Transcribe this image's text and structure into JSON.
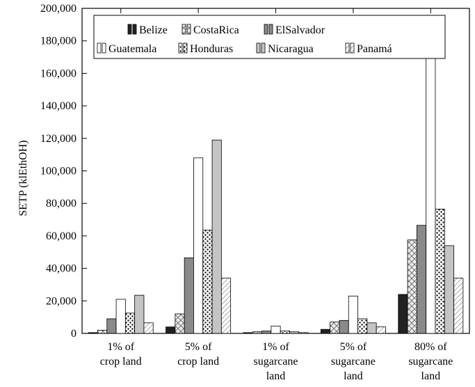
{
  "chart_data": {
    "type": "bar",
    "ylabel": "SETP (klEthOH)",
    "xlabel": "",
    "title": "",
    "ylim": [
      0,
      200000
    ],
    "yticks": [
      0,
      20000,
      40000,
      60000,
      80000,
      100000,
      120000,
      140000,
      160000,
      180000,
      200000
    ],
    "ytick_labels": [
      "0",
      "20,000",
      "40,000",
      "60,000",
      "80,000",
      "100,000",
      "120,000",
      "140,000",
      "160,000",
      "180,000",
      "200,000"
    ],
    "categories": [
      [
        "1% of",
        "crop land"
      ],
      [
        "5% of",
        "crop land"
      ],
      [
        "1% of",
        "sugarcane",
        "land"
      ],
      [
        "5% of",
        "sugarcane",
        "land"
      ],
      [
        "80% of",
        "sugarcane",
        "land"
      ]
    ],
    "legend_placement": "top",
    "series": [
      {
        "name": "Belize",
        "values": [
          500,
          4000,
          500,
          2500,
          24000
        ],
        "color": "#222222",
        "pattern": "solid"
      },
      {
        "name": "CostaRica",
        "values": [
          2000,
          12000,
          1000,
          7000,
          57500
        ],
        "color": "#e8e8e8",
        "pattern": "crosshatch"
      },
      {
        "name": "ElSalvador",
        "values": [
          9000,
          46500,
          1500,
          8000,
          66500
        ],
        "color": "#8a8a8a",
        "pattern": "solid"
      },
      {
        "name": "Guatemala",
        "values": [
          21000,
          108000,
          4500,
          23000,
          189000
        ],
        "color": "#ffffff",
        "pattern": "solid"
      },
      {
        "name": "Honduras",
        "values": [
          12500,
          63500,
          1500,
          9000,
          76500
        ],
        "color": "#ffffff",
        "pattern": "dots"
      },
      {
        "name": "Nicaragua",
        "values": [
          23500,
          119000,
          1000,
          6500,
          54000
        ],
        "color": "#c4c4c4",
        "pattern": "solid"
      },
      {
        "name": "Panamá",
        "values": [
          6500,
          34000,
          500,
          4000,
          34000
        ],
        "color": "#ffffff",
        "pattern": "diag"
      }
    ]
  }
}
